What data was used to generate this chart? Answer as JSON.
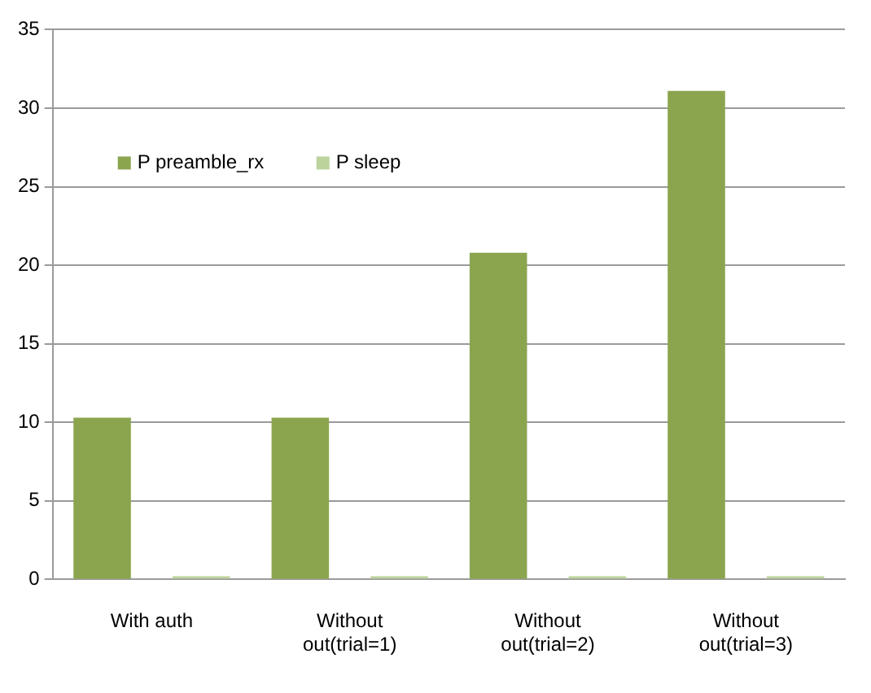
{
  "chart_data": {
    "type": "bar",
    "categories": [
      "With auth",
      "Without\nout(trial=1)",
      "Without\nout(trial=2)",
      "Without\nout(trial=3)"
    ],
    "series": [
      {
        "name": "P preamble_rx",
        "color": "#8ba54f",
        "values": [
          10.3,
          10.3,
          20.8,
          31.1
        ]
      },
      {
        "name": "P sleep",
        "color": "#bcd39b",
        "values": [
          0.2,
          0.2,
          0.2,
          0.2
        ]
      }
    ],
    "ylim": [
      0,
      35
    ],
    "yticks": [
      0,
      5,
      10,
      15,
      20,
      25,
      30,
      35
    ],
    "grid": "y",
    "legend": "top left"
  }
}
